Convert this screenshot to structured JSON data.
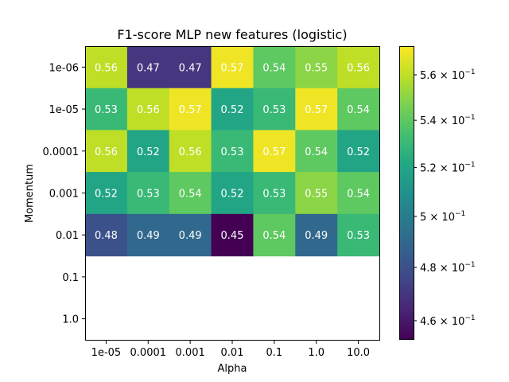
{
  "chart_data": {
    "type": "heatmap",
    "title": "F1-score MLP new features (logistic)",
    "xlabel": "Alpha",
    "ylabel": "Momentum",
    "x_categories": [
      "1e-05",
      "0.0001",
      "0.001",
      "0.01",
      "0.1",
      "1.0",
      "10.0"
    ],
    "y_categories": [
      "1e-06",
      "1e-05",
      "0.0001",
      "0.001",
      "0.01",
      "0.1",
      "1.0"
    ],
    "values": [
      [
        0.56,
        0.47,
        0.47,
        0.57,
        0.54,
        0.55,
        0.56
      ],
      [
        0.53,
        0.56,
        0.57,
        0.52,
        0.53,
        0.57,
        0.54
      ],
      [
        0.56,
        0.52,
        0.56,
        0.53,
        0.57,
        0.54,
        0.52
      ],
      [
        0.52,
        0.53,
        0.54,
        0.52,
        0.53,
        0.55,
        0.54
      ],
      [
        0.48,
        0.49,
        0.49,
        0.45,
        0.54,
        0.49,
        0.53
      ],
      [
        null,
        null,
        null,
        null,
        null,
        null,
        null
      ],
      [
        null,
        null,
        null,
        null,
        null,
        null,
        null
      ]
    ],
    "color_scale": "log",
    "colormap": "viridis",
    "colorbar_range": [
      0.453,
      0.573
    ],
    "colorbar_ticks": [
      {
        "value": 0.46,
        "mantissa": "4.6",
        "exp": "−1"
      },
      {
        "value": 0.48,
        "mantissa": "4.8",
        "exp": "−1"
      },
      {
        "value": 0.5,
        "mantissa": "5",
        "exp": "−1"
      },
      {
        "value": 0.52,
        "mantissa": "5.2",
        "exp": "−1"
      },
      {
        "value": 0.54,
        "mantissa": "5.4",
        "exp": "−1"
      },
      {
        "value": 0.56,
        "mantissa": "5.6",
        "exp": "−1"
      }
    ],
    "colorbar_tick_base": "10",
    "grid": false
  }
}
